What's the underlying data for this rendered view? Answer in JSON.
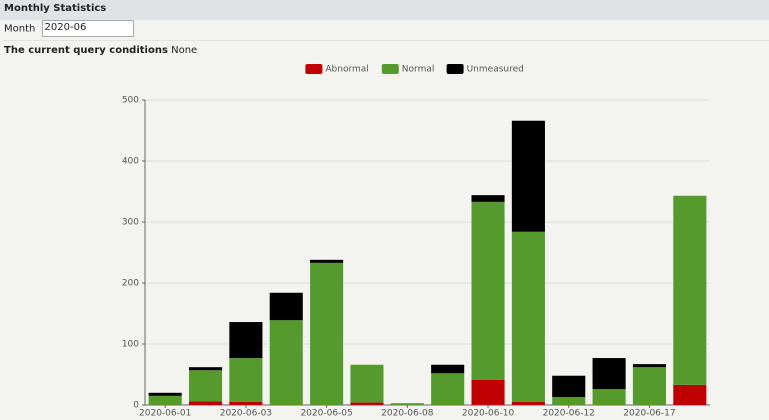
{
  "header": {
    "title": "Monthly Statistics"
  },
  "filter": {
    "label": "Month",
    "value": "2020-06"
  },
  "query": {
    "label": "The current query conditions",
    "value": "None"
  },
  "chart_data": {
    "type": "stacked-bar",
    "categories": [
      "2020-06-01",
      null,
      "2020-06-03",
      null,
      "2020-06-05",
      null,
      "2020-06-08",
      null,
      "2020-06-10",
      null,
      "2020-06-12",
      null,
      "2020-06-17",
      null
    ],
    "series": [
      {
        "name": "Abnormal",
        "color": "#c00000",
        "values": [
          0,
          6,
          5,
          0,
          0,
          4,
          0,
          0,
          41,
          5,
          0,
          0,
          0,
          33
        ]
      },
      {
        "name": "Normal",
        "color": "#559a2c",
        "values": [
          15,
          51,
          72,
          139,
          233,
          62,
          3,
          52,
          292,
          279,
          13,
          26,
          62,
          310
        ]
      },
      {
        "name": "Unmeasured",
        "color": "#000000",
        "values": [
          5,
          5,
          59,
          45,
          5,
          0,
          0,
          14,
          11,
          182,
          35,
          51,
          5,
          0
        ]
      }
    ],
    "ylim": [
      0,
      500
    ],
    "yticks": [
      0,
      100,
      200,
      300,
      400,
      500
    ],
    "grid": true,
    "legend": "top"
  }
}
